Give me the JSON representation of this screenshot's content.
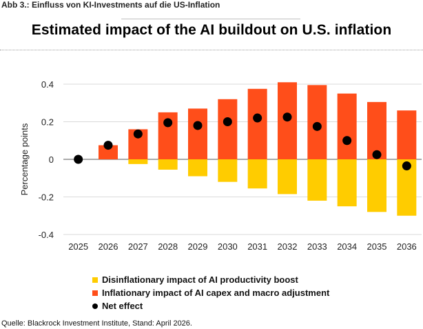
{
  "figure_caption": "Abb 3.: Einfluss von KI-Investments auf die US-Inflation",
  "source_note": "Quelle: Blackrock Investment Institute, Stand: April 2026.",
  "colors": {
    "disinflationary": "#FFCC00",
    "inflationary": "#FF4E1A",
    "net": "#000000",
    "gridline": "#d9d9d9"
  },
  "chart_data": {
    "type": "bar",
    "title": "Estimated impact of the AI buildout on U.S. inflation",
    "ylabel": "Percentage points",
    "xlabel": "",
    "ylim": [
      -0.4,
      0.4
    ],
    "yticks": [
      0.4,
      0.2,
      0,
      -0.2,
      -0.4
    ],
    "ytick_labels": [
      "0.4",
      "0.2",
      "0",
      "-0.2",
      "-0.4"
    ],
    "categories": [
      "2025",
      "2026",
      "2027",
      "2028",
      "2029",
      "2030",
      "2031",
      "2032",
      "2033",
      "2034",
      "2035",
      "2036"
    ],
    "grid": true,
    "legend_position": "bottom-left",
    "series": [
      {
        "name": "Disinflationary impact of AI productivity boost",
        "kind": "bar",
        "color_key": "disinflationary",
        "values": [
          0,
          0,
          -0.025,
          -0.055,
          -0.09,
          -0.12,
          -0.155,
          -0.185,
          -0.22,
          -0.25,
          -0.28,
          -0.3
        ]
      },
      {
        "name": "Inflationary impact of AI capex and macro adjustment",
        "kind": "bar",
        "color_key": "inflationary",
        "values": [
          0,
          0.075,
          0.16,
          0.25,
          0.27,
          0.32,
          0.375,
          0.41,
          0.395,
          0.35,
          0.305,
          0.26
        ]
      },
      {
        "name": "Net effect",
        "kind": "dot",
        "color_key": "net",
        "values": [
          0.0,
          0.075,
          0.135,
          0.195,
          0.18,
          0.2,
          0.22,
          0.225,
          0.175,
          0.1,
          0.025,
          -0.035
        ]
      }
    ]
  }
}
